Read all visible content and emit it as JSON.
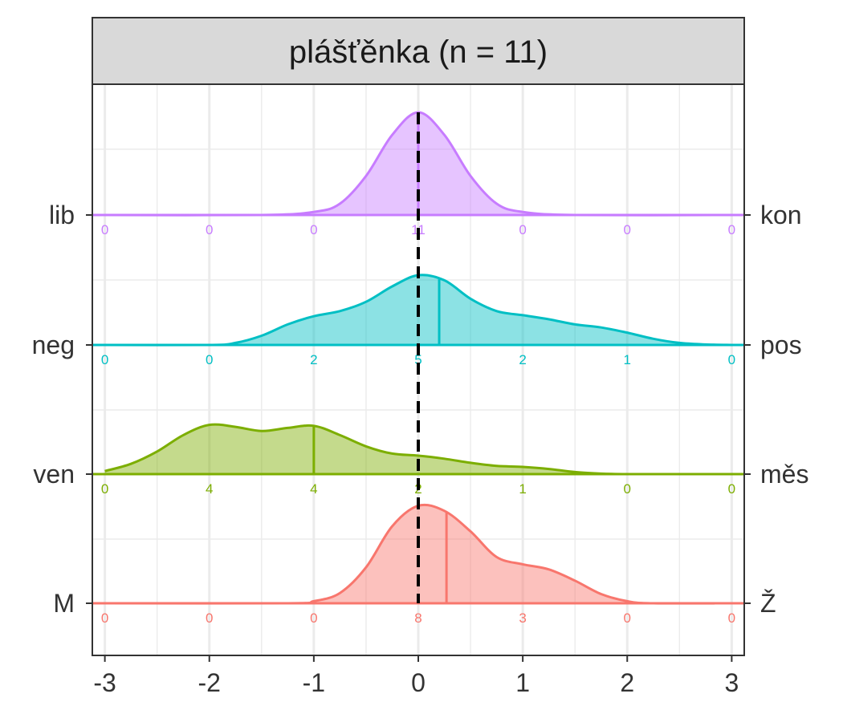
{
  "chart_data": {
    "type": "ridgeline",
    "title": "plášťěnka (n = 11)",
    "xlim": [
      -3,
      3
    ],
    "x_ticks": [
      -3,
      -2,
      -1,
      0,
      1,
      2,
      3
    ],
    "x_tick_labels": [
      "-3",
      "-2",
      "-1",
      "0",
      "1",
      "2",
      "3"
    ],
    "reference_line_x": 0,
    "grid": true,
    "rows": [
      {
        "left_label": "lib",
        "right_label": "kon",
        "color": "#C77CFF",
        "counts_x": [
          -3,
          -2,
          -1,
          0,
          1,
          2,
          3
        ],
        "counts": [
          "0",
          "0",
          "0",
          "11",
          "0",
          "0",
          "0"
        ],
        "mean": 0,
        "density_x": [
          -3,
          -1.5,
          -1,
          -0.75,
          -0.5,
          -0.25,
          0,
          0.25,
          0.5,
          0.75,
          1,
          1.5,
          3
        ],
        "density_y": [
          0,
          0,
          0.03,
          0.11,
          0.38,
          0.78,
          1.0,
          0.78,
          0.38,
          0.11,
          0.03,
          0,
          0
        ]
      },
      {
        "left_label": "neg",
        "right_label": "pos",
        "color": "#00BFC4",
        "counts_x": [
          -3,
          -2,
          -1,
          0,
          1,
          2,
          3
        ],
        "counts": [
          "0",
          "0",
          "2",
          "5",
          "2",
          "1",
          "0"
        ],
        "mean": 0.2,
        "density_x": [
          -3,
          -2,
          -1.75,
          -1.5,
          -1.25,
          -1,
          -0.75,
          -0.5,
          -0.25,
          0,
          0.25,
          0.5,
          0.75,
          1,
          1.25,
          1.5,
          1.75,
          2,
          2.25,
          2.5,
          2.75,
          3
        ],
        "density_y": [
          0,
          0,
          0.02,
          0.09,
          0.2,
          0.28,
          0.33,
          0.42,
          0.57,
          0.68,
          0.63,
          0.45,
          0.33,
          0.29,
          0.25,
          0.2,
          0.17,
          0.12,
          0.06,
          0.02,
          0.005,
          0
        ]
      },
      {
        "left_label": "ven",
        "right_label": "měs",
        "color": "#7CAE00",
        "counts_x": [
          -3,
          -2,
          -1,
          0,
          1,
          2,
          3
        ],
        "counts": [
          "0",
          "4",
          "4",
          "2",
          "1",
          "0",
          "0"
        ],
        "mean": -1,
        "density_x": [
          -3,
          -2.75,
          -2.5,
          -2.25,
          -2,
          -1.75,
          -1.5,
          -1.25,
          -1,
          -0.75,
          -0.5,
          -0.25,
          0,
          0.25,
          0.5,
          0.75,
          1,
          1.25,
          1.5,
          1.75,
          2,
          2.25,
          2.5,
          3
        ],
        "density_y": [
          0.03,
          0.1,
          0.22,
          0.38,
          0.48,
          0.46,
          0.42,
          0.45,
          0.47,
          0.38,
          0.27,
          0.2,
          0.18,
          0.15,
          0.11,
          0.08,
          0.07,
          0.05,
          0.02,
          0.005,
          0,
          0,
          0,
          0
        ]
      },
      {
        "left_label": "M",
        "right_label": "Ž",
        "color": "#F8766D",
        "counts_x": [
          -3,
          -2,
          -1,
          0,
          1,
          2,
          3
        ],
        "counts": [
          "0",
          "0",
          "0",
          "8",
          "3",
          "0",
          "0"
        ],
        "mean": 0.27,
        "density_x": [
          -3,
          -1.25,
          -1,
          -0.75,
          -0.5,
          -0.25,
          0,
          0.25,
          0.5,
          0.75,
          1,
          1.25,
          1.5,
          1.75,
          2,
          2.25,
          3
        ],
        "density_y": [
          0,
          0,
          0.02,
          0.1,
          0.35,
          0.75,
          0.95,
          0.9,
          0.7,
          0.45,
          0.38,
          0.33,
          0.22,
          0.09,
          0.02,
          0,
          0
        ]
      }
    ]
  }
}
